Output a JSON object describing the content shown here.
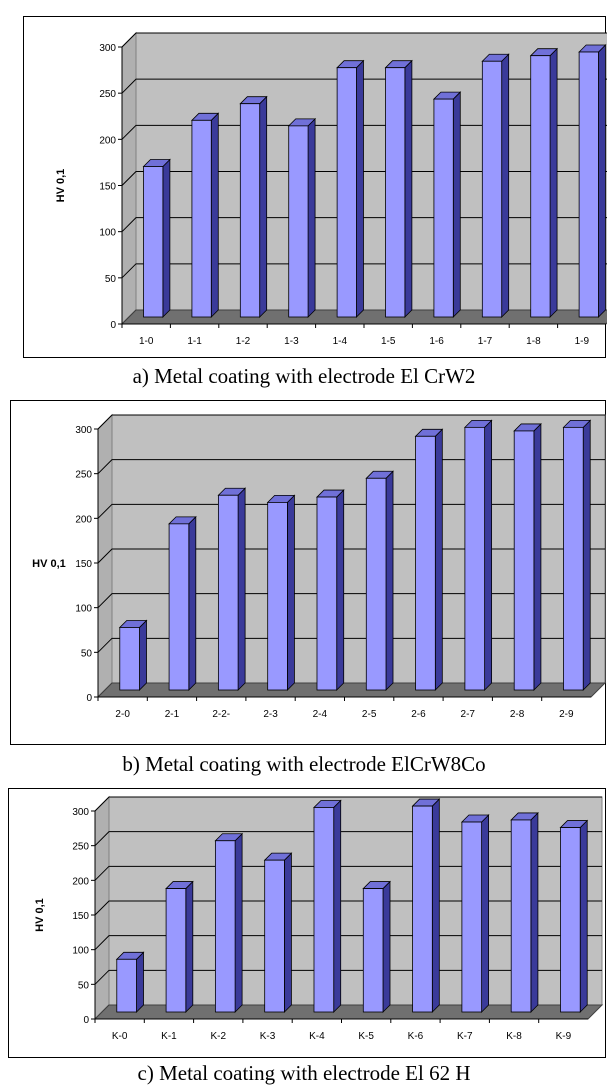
{
  "figures": [
    {
      "caption": "a) Metal coating with electrode El CrW2"
    },
    {
      "caption": "b) Metal coating with electrode ElCrW8Co"
    },
    {
      "caption": "c) Metal coating with electrode El 62 H"
    }
  ],
  "chart_data": [
    {
      "type": "bar",
      "ylabel": "HV 0,1",
      "ylim": [
        0,
        300
      ],
      "yticks": [
        0,
        50,
        100,
        150,
        200,
        250,
        300
      ],
      "grid": true,
      "categories": [
        "1-0",
        "1-1",
        "1-2",
        "1-3",
        "1-4",
        "1-5",
        "1-6",
        "1-7",
        "1-8",
        "1-9"
      ],
      "values": [
        163,
        213,
        231,
        207,
        270,
        270,
        236,
        277,
        283,
        287
      ],
      "bar_color": "#9999ff"
    },
    {
      "type": "bar",
      "ylabel": "HV 0,1",
      "ylim": [
        0,
        300
      ],
      "yticks": [
        0,
        50,
        100,
        150,
        200,
        250,
        300
      ],
      "grid": true,
      "categories": [
        "2-0",
        "2-1",
        "2-2-",
        "2-3",
        "2-4",
        "2-5",
        "2-6",
        "2-7",
        "2-8",
        "2-9"
      ],
      "values": [
        70,
        186,
        218,
        210,
        216,
        237,
        284,
        294,
        290,
        294
      ],
      "bar_color": "#9999ff"
    },
    {
      "type": "bar",
      "ylabel": "HV 0,1",
      "ylim": [
        0,
        300
      ],
      "yticks": [
        0,
        50,
        100,
        150,
        200,
        250,
        300
      ],
      "grid": true,
      "categories": [
        "K-0",
        "K-1",
        "K-2",
        "K-3",
        "K-4",
        "K-5",
        "K-6",
        "K-7",
        "K-8",
        "K-9"
      ],
      "values": [
        76,
        178,
        247,
        219,
        295,
        178,
        297,
        274,
        277,
        266
      ],
      "bar_color": "#9999ff"
    }
  ]
}
